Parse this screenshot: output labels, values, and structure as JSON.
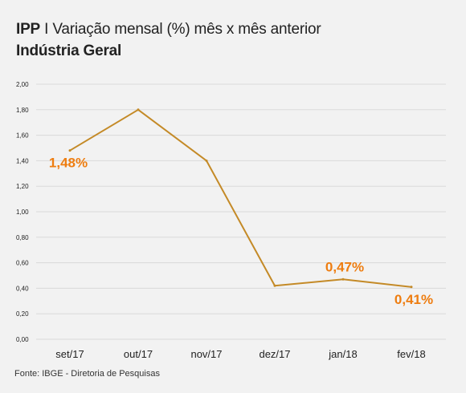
{
  "header": {
    "indicator": "IPP",
    "separator": "I",
    "description": "Variação mensal (%) mês x mês anterior",
    "subtitle": "Indústria Geral"
  },
  "footer": {
    "source": "Fonte: IBGE - Diretoria de Pesquisas"
  },
  "chart_data": {
    "type": "line",
    "title": "IPP I Variação mensal (%) mês x mês anterior",
    "subtitle": "Indústria Geral",
    "xlabel": "",
    "ylabel": "",
    "categories": [
      "set/17",
      "out/17",
      "nov/17",
      "dez/17",
      "jan/18",
      "fev/18"
    ],
    "series": [
      {
        "values": [
          1.48,
          1.8,
          1.4,
          0.42,
          0.47,
          0.41
        ],
        "color": "#c48a27"
      }
    ],
    "data_labels": [
      {
        "index": 0,
        "text": "1,48%"
      },
      {
        "index": 4,
        "text": "0,47%"
      },
      {
        "index": 5,
        "text": "0,41%"
      }
    ],
    "label_color": "#ee7d10",
    "ylim": [
      0,
      2
    ],
    "yticks": [
      "0,00",
      "0,20",
      "0,40",
      "0,60",
      "0,80",
      "1,00",
      "1,20",
      "1,40",
      "1,60",
      "1,80",
      "2,00"
    ],
    "grid": true,
    "legend": "none"
  }
}
